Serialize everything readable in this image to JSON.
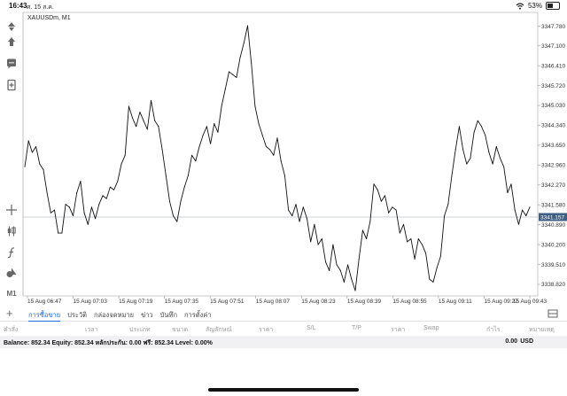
{
  "statusbar": {
    "time": "16:43",
    "date": "ศ. 15 ส.ค.",
    "battery": "53%",
    "battery_level": 0.53
  },
  "chart": {
    "symbol": "XAUUSDm, M1",
    "current_price": "3341.157",
    "price_line_value": 3341.157,
    "y_ticks": [
      "3347.780",
      "3347.100",
      "3346.410",
      "3345.720",
      "3345.030",
      "3344.340",
      "3343.650",
      "3342.960",
      "3342.270",
      "3341.580",
      "3340.890",
      "3340.200",
      "3339.510",
      "3338.820"
    ],
    "x_ticks": [
      "15 Aug 06:47",
      "15 Aug 07:03",
      "15 Aug 07:19",
      "15 Aug 07:35",
      "15 Aug 07:51",
      "15 Aug 08:07",
      "15 Aug 08:23",
      "15 Aug 08:39",
      "15 Aug 08:55",
      "15 Aug 09:11",
      "15 Aug 09:27",
      "15 Aug 09:43"
    ],
    "ylim": [
      3338.42,
      3348.26
    ]
  },
  "chart_data": {
    "type": "line",
    "title": "XAUUSDm, M1",
    "xlabel": "",
    "ylabel": "",
    "ylim": [
      3338.42,
      3348.26
    ],
    "x_tick_labels": [
      "15 Aug 06:47",
      "15 Aug 07:03",
      "15 Aug 07:19",
      "15 Aug 07:35",
      "15 Aug 07:51",
      "15 Aug 08:07",
      "15 Aug 08:23",
      "15 Aug 08:39",
      "15 Aug 08:55",
      "15 Aug 09:11",
      "15 Aug 09:27",
      "15 Aug 09:43"
    ],
    "series": [
      {
        "values": [
          3342.9,
          3343.8,
          3343.4,
          3343.6,
          3343.0,
          3342.8,
          3342.0,
          3341.3,
          3341.4,
          3340.6,
          3340.6,
          3341.6,
          3341.5,
          3341.2,
          3342.0,
          3342.4,
          3341.3,
          3340.9,
          3341.5,
          3341.1,
          3341.6,
          3341.9,
          3341.8,
          3342.2,
          3342.1,
          3342.4,
          3343.0,
          3343.3,
          3345.0,
          3344.6,
          3344.3,
          3344.8,
          3344.5,
          3344.2,
          3345.2,
          3344.5,
          3344.3,
          3343.5,
          3342.6,
          3341.7,
          3341.2,
          3341.0,
          3341.7,
          3342.2,
          3342.6,
          3343.3,
          3343.1,
          3343.6,
          3344.0,
          3344.3,
          3343.7,
          3344.4,
          3344.1,
          3345.0,
          3345.6,
          3346.2,
          3346.1,
          3346.0,
          3346.7,
          3347.2,
          3347.8,
          3346.5,
          3345.0,
          3344.4,
          3344.0,
          3343.6,
          3343.5,
          3343.3,
          3343.9,
          3343.1,
          3342.6,
          3341.4,
          3341.2,
          3341.6,
          3341.0,
          3341.5,
          3341.1,
          3340.3,
          3340.9,
          3340.2,
          3340.4,
          3339.6,
          3339.3,
          3340.2,
          3339.5,
          3339.3,
          3338.9,
          3339.5,
          3339.0,
          3338.6,
          3339.7,
          3340.7,
          3340.4,
          3341.0,
          3342.3,
          3342.1,
          3341.7,
          3341.9,
          3341.3,
          3341.5,
          3341.4,
          3340.6,
          3340.9,
          3340.3,
          3340.4,
          3339.7,
          3340.4,
          3340.2,
          3339.9,
          3339.0,
          3338.9,
          3339.4,
          3339.8,
          3341.2,
          3341.6,
          3342.6,
          3343.5,
          3344.3,
          3343.5,
          3343.0,
          3343.2,
          3344.1,
          3344.5,
          3344.3,
          3344.0,
          3343.4,
          3343.0,
          3343.6,
          3343.2,
          3342.9,
          3342.0,
          3342.3,
          3341.4,
          3340.9,
          3341.4,
          3341.2,
          3341.5
        ]
      }
    ]
  },
  "sidebar": {
    "timeframe_label": "M1"
  },
  "tabs": [
    "การซื้อขาย",
    "ประวัติ",
    "กล่องจดหมาย",
    "ข่าว",
    "บันทึก",
    "การตั้งค่า"
  ],
  "columns": [
    "คำสั่ง",
    "เวลา",
    "ประเภท",
    "ขนาด",
    "สัญลักษณ์",
    "ราคา",
    "S/L",
    "T/P",
    "ราคา",
    "Swap",
    "กำไร",
    "หมายเหตุ"
  ],
  "balance": {
    "text": "Balance: 852.34 Equity: 852.34 หลักประกัน: 0.00 ฟรี: 852.34 Level: 0.00%",
    "profit": "0.00",
    "currency": "USD"
  }
}
